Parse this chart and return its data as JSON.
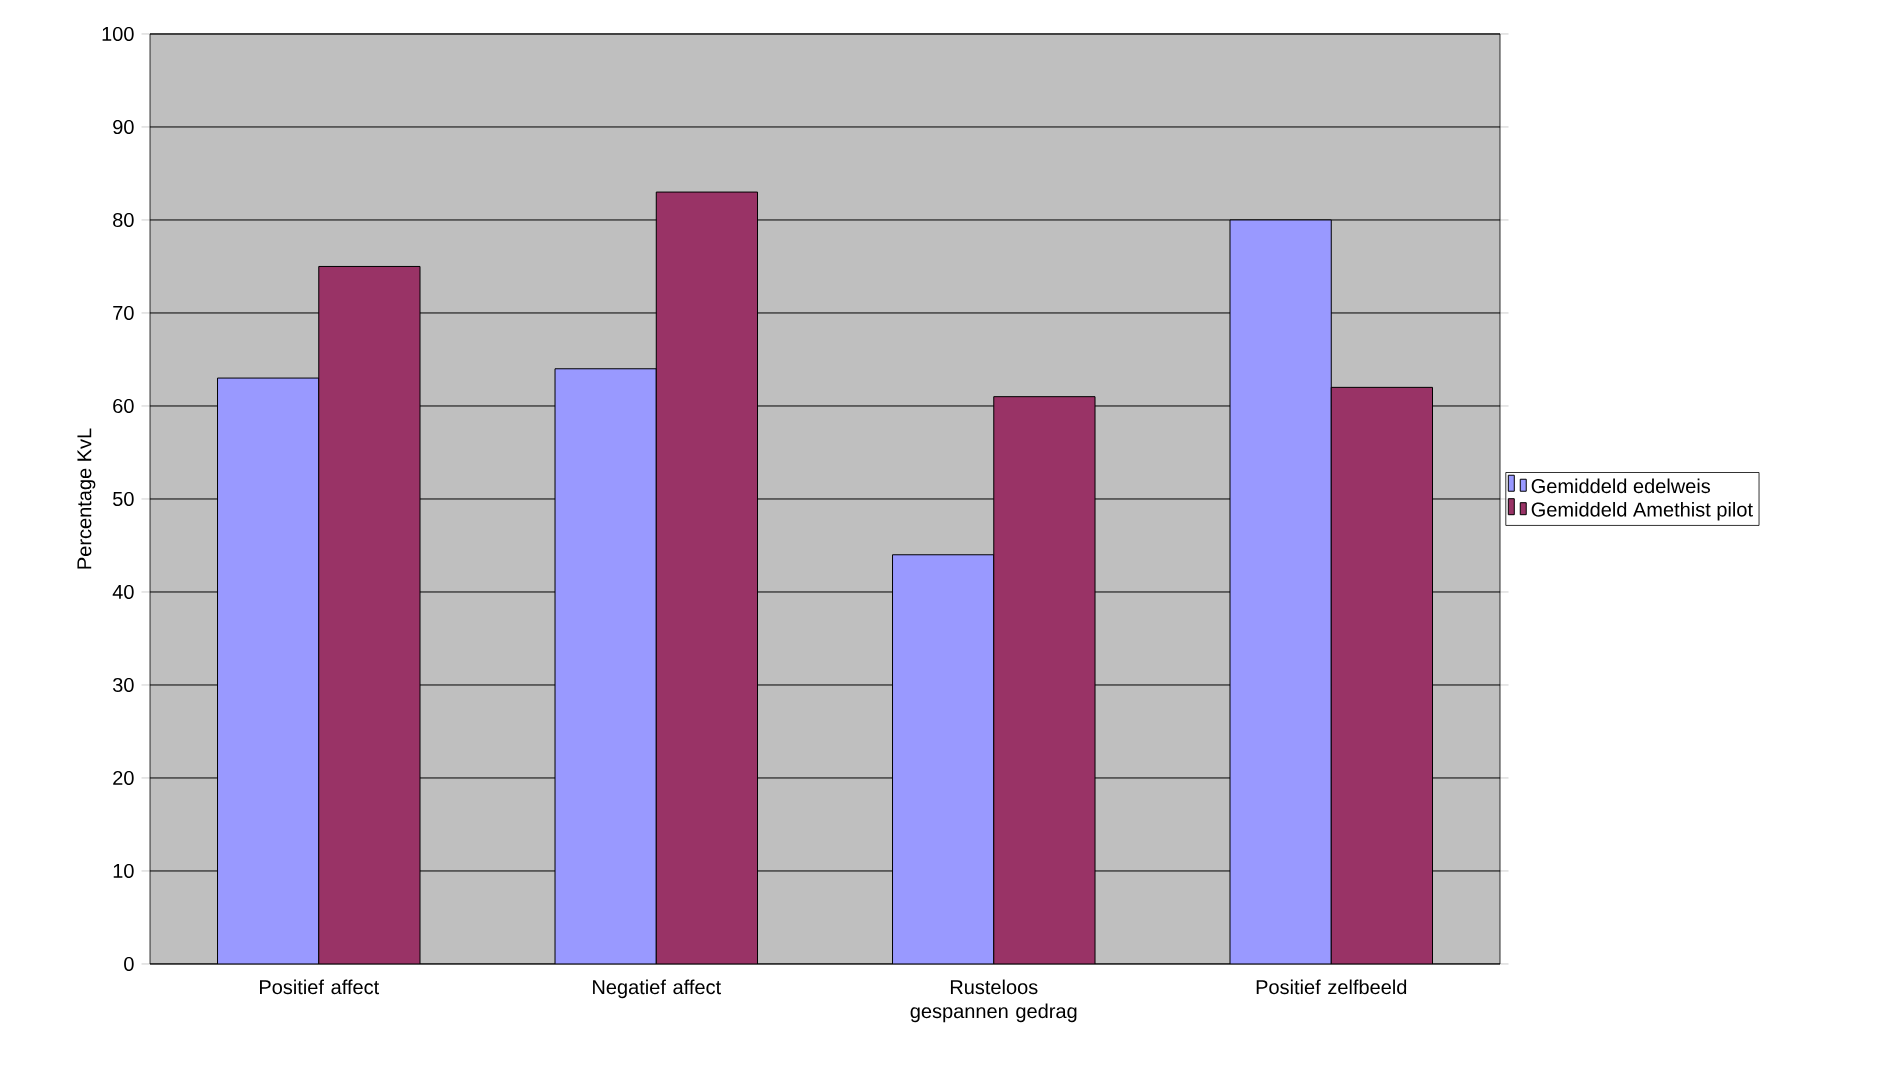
{
  "chart_data": {
    "type": "bar",
    "ylabel": "Percentage KvL",
    "categories": [
      "Positief affect",
      "Negatief affect",
      "Rusteloos gespannen gedrag",
      "Positief zelfbeeld"
    ],
    "series": [
      {
        "name": "Gemiddeld edelweis",
        "color": "#9999ff",
        "values": [
          63,
          64,
          44,
          80
        ]
      },
      {
        "name": "Gemiddeld Amethist pilot",
        "color": "#993366",
        "values": [
          75,
          83,
          61,
          62
        ]
      }
    ],
    "ylim": [
      0,
      100
    ],
    "yticks": [
      0,
      10,
      20,
      30,
      40,
      50,
      60,
      70,
      80,
      90,
      100
    ],
    "grid": "y",
    "legend": "right"
  }
}
